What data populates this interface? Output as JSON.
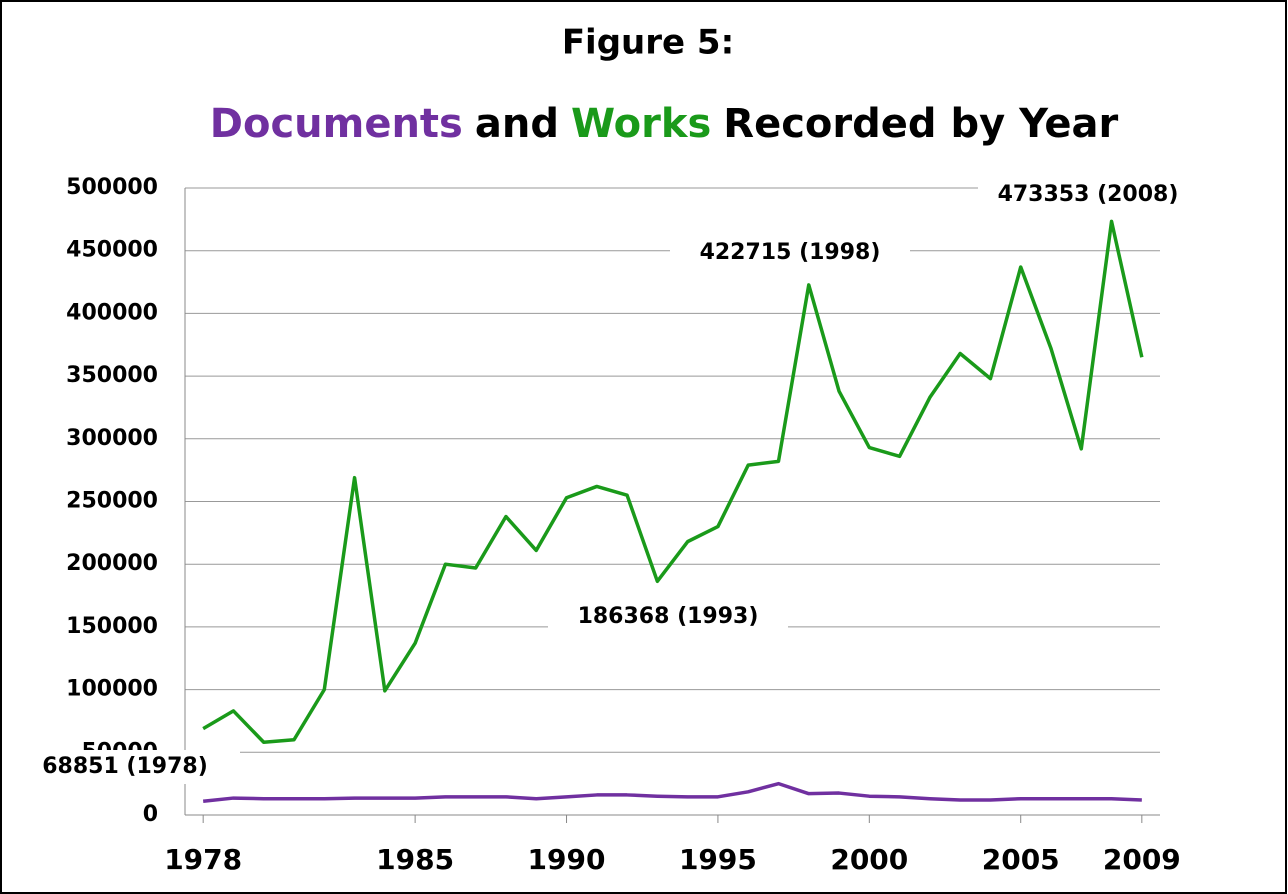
{
  "chart_data": {
    "type": "line",
    "title": "Figure 5:",
    "subtitle_parts": [
      {
        "text": "Documents",
        "color": "#7030a0"
      },
      {
        "text": "and",
        "color": "#000000"
      },
      {
        "text": "Works",
        "color": "#1a9a1a"
      },
      {
        "text": "Recorded by Year",
        "color": "#000000"
      }
    ],
    "x": [
      1978,
      1979,
      1980,
      1981,
      1982,
      1983,
      1984,
      1985,
      1986,
      1987,
      1988,
      1989,
      1990,
      1991,
      1992,
      1993,
      1994,
      1995,
      1996,
      1997,
      1998,
      1999,
      2000,
      2001,
      2002,
      2003,
      2004,
      2005,
      2006,
      2007,
      2008,
      2009
    ],
    "xlim": [
      1977.4,
      2009.6
    ],
    "xticks": [
      1978,
      1985,
      1990,
      1995,
      2000,
      2005,
      2009
    ],
    "ylim": [
      0,
      500000
    ],
    "yticks": [
      0,
      50000,
      100000,
      150000,
      200000,
      250000,
      300000,
      350000,
      400000,
      450000,
      500000
    ],
    "grid": true,
    "series": [
      {
        "name": "Works",
        "color": "#1a9a1a",
        "values": [
          68851,
          83000,
          58000,
          60000,
          100000,
          269000,
          99000,
          137000,
          200000,
          197000,
          238000,
          211000,
          253000,
          262000,
          255000,
          186368,
          218000,
          230000,
          279000,
          282000,
          422715,
          338000,
          293000,
          286000,
          333000,
          368000,
          348000,
          437000,
          372000,
          292000,
          473353,
          365000
        ]
      },
      {
        "name": "Documents",
        "color": "#7030a0",
        "values": [
          11000,
          13500,
          13000,
          13000,
          13000,
          13500,
          13500,
          13500,
          14500,
          14500,
          14500,
          13000,
          14500,
          16000,
          16000,
          15000,
          14500,
          14500,
          18500,
          25000,
          17000,
          17500,
          15000,
          14500,
          13000,
          12000,
          12000,
          13000,
          13000,
          13000,
          13000,
          12000
        ]
      }
    ],
    "annotations": [
      "68851 (1978)",
      "186368 (1993)",
      "422715 (1998)",
      "473353 (2008)"
    ]
  }
}
